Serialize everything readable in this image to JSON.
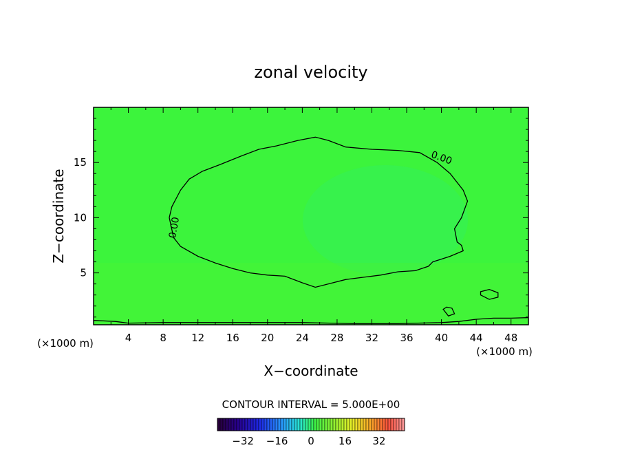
{
  "chart_data": {
    "type": "contour",
    "title": "zonal velocity",
    "xlabel": "X−coordinate",
    "ylabel": "Z−coordinate",
    "x_unit_left": "(×1000 m)",
    "x_unit_right": "(×1000 m)",
    "xlim": [
      0,
      50
    ],
    "ylim": [
      0.3,
      20
    ],
    "x_ticks": [
      4,
      8,
      12,
      16,
      20,
      24,
      28,
      32,
      36,
      40,
      44,
      48
    ],
    "x_tick_labels": [
      "4",
      "8",
      "12",
      "16",
      "20",
      "24",
      "28",
      "32",
      "36",
      "40",
      "44",
      "48"
    ],
    "y_ticks": [
      5,
      10,
      15
    ],
    "y_tick_labels": [
      "5",
      "10",
      "15"
    ],
    "grid": false,
    "field_color": "#3cf43c",
    "contour_interval_text": "CONTOUR INTERVAL = 5.000E+00",
    "contour_labels": [
      "0.00",
      "0.00"
    ],
    "colorbar": {
      "min": -44,
      "max": 44,
      "tick_values": [
        -32,
        -16,
        0,
        16,
        32
      ],
      "tick_labels": [
        "−32",
        "−16",
        "0",
        "16",
        "32"
      ]
    },
    "contours": [
      {
        "level": 0,
        "label": "0.00",
        "closed": true,
        "points": [
          [
            8.7,
            10.0
          ],
          [
            9.2,
            8.2
          ],
          [
            10.0,
            7.4
          ],
          [
            12.0,
            6.5
          ],
          [
            14.0,
            5.9
          ],
          [
            16.0,
            5.4
          ],
          [
            18.0,
            5.0
          ],
          [
            20.0,
            4.8
          ],
          [
            22.0,
            4.7
          ],
          [
            24.0,
            4.1
          ],
          [
            25.5,
            3.7
          ],
          [
            27.0,
            4.0
          ],
          [
            29.0,
            4.4
          ],
          [
            31.0,
            4.6
          ],
          [
            33.0,
            4.8
          ],
          [
            35.0,
            5.1
          ],
          [
            37.0,
            5.2
          ],
          [
            38.5,
            5.6
          ],
          [
            39.0,
            6.0
          ],
          [
            41.0,
            6.5
          ],
          [
            42.5,
            7.0
          ],
          [
            42.3,
            7.5
          ],
          [
            41.8,
            7.8
          ],
          [
            41.5,
            9.0
          ],
          [
            42.3,
            10.0
          ],
          [
            43.0,
            11.5
          ],
          [
            42.5,
            12.5
          ],
          [
            41.0,
            14.0
          ],
          [
            39.5,
            15.0
          ],
          [
            37.5,
            15.9
          ],
          [
            35.0,
            16.1
          ],
          [
            32.0,
            16.2
          ],
          [
            29.0,
            16.4
          ],
          [
            27.0,
            17.0
          ],
          [
            25.5,
            17.3
          ],
          [
            23.5,
            17.0
          ],
          [
            21.0,
            16.5
          ],
          [
            19.0,
            16.2
          ],
          [
            17.0,
            15.6
          ],
          [
            14.5,
            14.8
          ],
          [
            12.5,
            14.2
          ],
          [
            11.0,
            13.5
          ],
          [
            10.0,
            12.5
          ],
          [
            9.0,
            11.0
          ],
          [
            8.7,
            10.0
          ]
        ]
      },
      {
        "level": 0,
        "closed": true,
        "points": [
          [
            44.5,
            3.0
          ],
          [
            45.5,
            2.6
          ],
          [
            46.5,
            2.8
          ],
          [
            46.5,
            3.2
          ],
          [
            45.5,
            3.5
          ],
          [
            44.5,
            3.3
          ],
          [
            44.5,
            3.0
          ]
        ]
      },
      {
        "level": 0,
        "closed": true,
        "points": [
          [
            40.2,
            1.7
          ],
          [
            40.8,
            1.1
          ],
          [
            41.5,
            1.3
          ],
          [
            41.2,
            1.8
          ],
          [
            40.6,
            1.9
          ],
          [
            40.2,
            1.7
          ]
        ]
      },
      {
        "level": 0,
        "closed": false,
        "points": [
          [
            0,
            0.7
          ],
          [
            2.5,
            0.6
          ],
          [
            4,
            0.45
          ],
          [
            8,
            0.5
          ],
          [
            16,
            0.5
          ],
          [
            24,
            0.5
          ],
          [
            30,
            0.4
          ],
          [
            35,
            0.4
          ],
          [
            40,
            0.5
          ],
          [
            42,
            0.6
          ],
          [
            44,
            0.8
          ],
          [
            46,
            0.9
          ],
          [
            48,
            0.9
          ],
          [
            50,
            0.95
          ]
        ]
      }
    ]
  }
}
